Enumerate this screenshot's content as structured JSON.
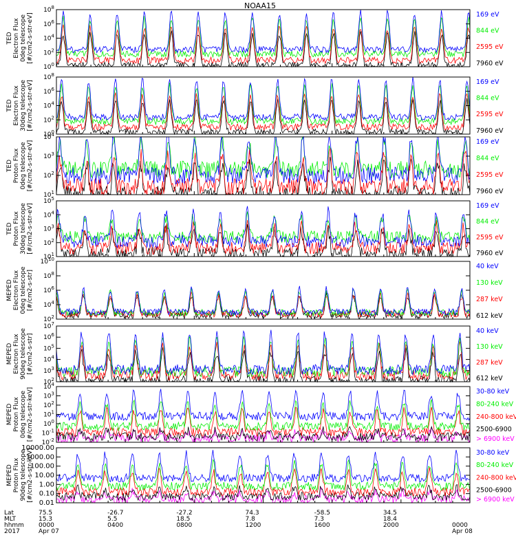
{
  "title": "NOAA15",
  "colors": {
    "black": "#000000",
    "red": "#ff0000",
    "green": "#00ee00",
    "blue": "#0000ff",
    "magenta": "#ff00ff"
  },
  "chart_data": [
    {
      "type": "line",
      "panel": "ted-electron-0",
      "ylabel": [
        "TED",
        "Electron Flux",
        "0deg telescope",
        "[#/cm2-s-str-eV]"
      ],
      "yscale": "log",
      "ytick_exp": [
        0,
        2,
        4,
        6,
        8
      ],
      "series": [
        {
          "name": "7960 eV",
          "color": "#000000",
          "base": 0.2,
          "amp": 4.5
        },
        {
          "name": "2595 eV",
          "color": "#ff0000",
          "base": 0.9,
          "amp": 4.6
        },
        {
          "name": "844 eV",
          "color": "#00ee00",
          "base": 1.8,
          "amp": 5.0
        },
        {
          "name": "169 eV",
          "color": "#0000ff",
          "base": 2.4,
          "amp": 5.2
        }
      ]
    },
    {
      "type": "line",
      "panel": "ted-electron-30",
      "ylabel": [
        "TED",
        "Electron Flux",
        "30deg telescope",
        "[#/cm2-s-str-eV]"
      ],
      "yscale": "log",
      "ytick_exp": [
        0,
        2,
        4,
        6,
        8
      ],
      "series": [
        {
          "name": "7960 eV",
          "color": "#000000",
          "base": 0.3,
          "amp": 4.4
        },
        {
          "name": "2595 eV",
          "color": "#ff0000",
          "base": 1.0,
          "amp": 4.5
        },
        {
          "name": "844 eV",
          "color": "#00ee00",
          "base": 1.8,
          "amp": 5.0
        },
        {
          "name": "169 eV",
          "color": "#0000ff",
          "base": 2.4,
          "amp": 5.2
        }
      ]
    },
    {
      "type": "line",
      "panel": "ted-proton-0",
      "ylabel": [
        "TED",
        "Proton Flux",
        "0deg telescope",
        "[#/cm2-s-str-eV]"
      ],
      "yscale": "log",
      "ytick_exp": [
        1,
        2,
        3,
        4
      ],
      "series": [
        {
          "name": "7960 eV",
          "color": "#000000",
          "base": 1.0,
          "amp": 1.6
        },
        {
          "name": "2595 eV",
          "color": "#ff0000",
          "base": 1.4,
          "amp": 1.6
        },
        {
          "name": "844 eV",
          "color": "#00ee00",
          "base": 2.3,
          "amp": 1.5
        },
        {
          "name": "169 eV",
          "color": "#0000ff",
          "base": 2.0,
          "amp": 2.1
        }
      ]
    },
    {
      "type": "line",
      "panel": "ted-proton-30",
      "ylabel": [
        "TED",
        "Proton Flux",
        "30deg telescope",
        "[#/cm2-s-str-eV]"
      ],
      "yscale": "log",
      "ytick_exp": [
        1,
        2,
        3,
        4,
        5
      ],
      "series": [
        {
          "name": "7960 eV",
          "color": "#000000",
          "base": 1.2,
          "amp": 1.7
        },
        {
          "name": "2595 eV",
          "color": "#ff0000",
          "base": 1.6,
          "amp": 1.6
        },
        {
          "name": "844 eV",
          "color": "#00ee00",
          "base": 2.4,
          "amp": 1.4
        },
        {
          "name": "169 eV",
          "color": "#0000ff",
          "base": 2.1,
          "amp": 2.1
        }
      ]
    },
    {
      "type": "line",
      "panel": "meped-proton-0",
      "ylabel": [
        "MEPED",
        "Electron Flux",
        "0deg telescope",
        "[#/cm2-s-str]"
      ],
      "yscale": "log",
      "ytick_exp": [
        2,
        4,
        6,
        8,
        10
      ],
      "series": [
        {
          "name": "612 keV",
          "color": "#000000",
          "base": 2.5,
          "amp": 2.8
        },
        {
          "name": "287 keV",
          "color": "#ff0000",
          "base": 2.7,
          "amp": 2.6
        },
        {
          "name": "130 keV",
          "color": "#00ee00",
          "base": 2.9,
          "amp": 3.0
        },
        {
          "name": "40 keV",
          "color": "#0000ff",
          "base": 3.0,
          "amp": 3.2
        }
      ]
    },
    {
      "type": "line",
      "panel": "meped-electron-90",
      "ylabel": [
        "MEPED",
        "Electron Flux",
        "90deg telescope",
        "[#/cm2-s-str]"
      ],
      "yscale": "log",
      "ytick_exp": [
        2,
        3,
        4,
        5,
        6,
        7
      ],
      "series": [
        {
          "name": "612 keV",
          "color": "#000000",
          "base": 2.1,
          "amp": 2.6
        },
        {
          "name": "287 keV",
          "color": "#ff0000",
          "base": 2.6,
          "amp": 2.6
        },
        {
          "name": "130 keV",
          "color": "#00ee00",
          "base": 2.9,
          "amp": 2.8
        },
        {
          "name": "40 keV",
          "color": "#0000ff",
          "base": 3.1,
          "amp": 3.2
        }
      ]
    },
    {
      "type": "line",
      "panel": "meped-proton-flux-0",
      "ylabel": [
        "MEPED",
        "Proton Flux",
        "0deg telescope",
        "[#/cm2-s-str-keV]"
      ],
      "yscale": "log",
      "ytick_exp": [
        -2,
        -1,
        0,
        1,
        2,
        3,
        4
      ],
      "series": [
        {
          "name": "> 6900 keV",
          "color": "#ff00ff",
          "base": -1.6,
          "amp": 0.8
        },
        {
          "name": "2500-6900",
          "color": "#000000",
          "base": -1.4,
          "amp": 0.7
        },
        {
          "name": "240-800 keV",
          "color": "#ff0000",
          "base": -0.9,
          "amp": 2.3
        },
        {
          "name": "80-240 keV",
          "color": "#00ee00",
          "base": -0.3,
          "amp": 2.5
        },
        {
          "name": "30-80 keV",
          "color": "#0000ff",
          "base": 0.8,
          "amp": 2.6
        }
      ]
    },
    {
      "type": "line",
      "panel": "meped-proton-flux-90",
      "ylabel": [
        "MEPED",
        "Proton Flux",
        "90deg telescope",
        "[#/cm2-s-str-keV]"
      ],
      "yscale": "log",
      "ytick_labels": [
        "0.01",
        "0.10",
        "1.00",
        "10.00",
        "100.00",
        "1000.00",
        "10000.00"
      ],
      "ytick_exp": [
        -2,
        -1,
        0,
        1,
        2,
        3,
        4
      ],
      "series": [
        {
          "name": "> 6900 keV",
          "color": "#ff00ff",
          "base": -1.6,
          "amp": 0.8
        },
        {
          "name": "2500-6900",
          "color": "#000000",
          "base": -1.3,
          "amp": 0.9
        },
        {
          "name": "240-800 keV",
          "color": "#ff0000",
          "base": -0.8,
          "amp": 2.3
        },
        {
          "name": "80-240 keV",
          "color": "#00ee00",
          "base": -0.2,
          "amp": 2.5
        },
        {
          "name": "30-80 keV",
          "color": "#0000ff",
          "base": 0.7,
          "amp": 2.7
        }
      ]
    }
  ],
  "xaxis": {
    "row_labels": [
      "Lat",
      "MLT",
      "hhmm",
      "2017"
    ],
    "ticks": [
      {
        "lat": "75.5",
        "mlt": "15.3",
        "hhmm": "0000",
        "date": "Apr 07"
      },
      {
        "lat": "-26.7",
        "mlt": "5.5",
        "hhmm": "0400",
        "date": ""
      },
      {
        "lat": "-27.2",
        "mlt": "18.5",
        "hhmm": "0800",
        "date": ""
      },
      {
        "lat": "74.3",
        "mlt": "7.8",
        "hhmm": "1200",
        "date": ""
      },
      {
        "lat": "-58.5",
        "mlt": "7.3",
        "hhmm": "1600",
        "date": ""
      },
      {
        "lat": "34.5",
        "mlt": "18.4",
        "hhmm": "2000",
        "date": ""
      },
      {
        "lat": "",
        "mlt": "",
        "hhmm": "0000",
        "date": "Apr 08"
      }
    ]
  }
}
